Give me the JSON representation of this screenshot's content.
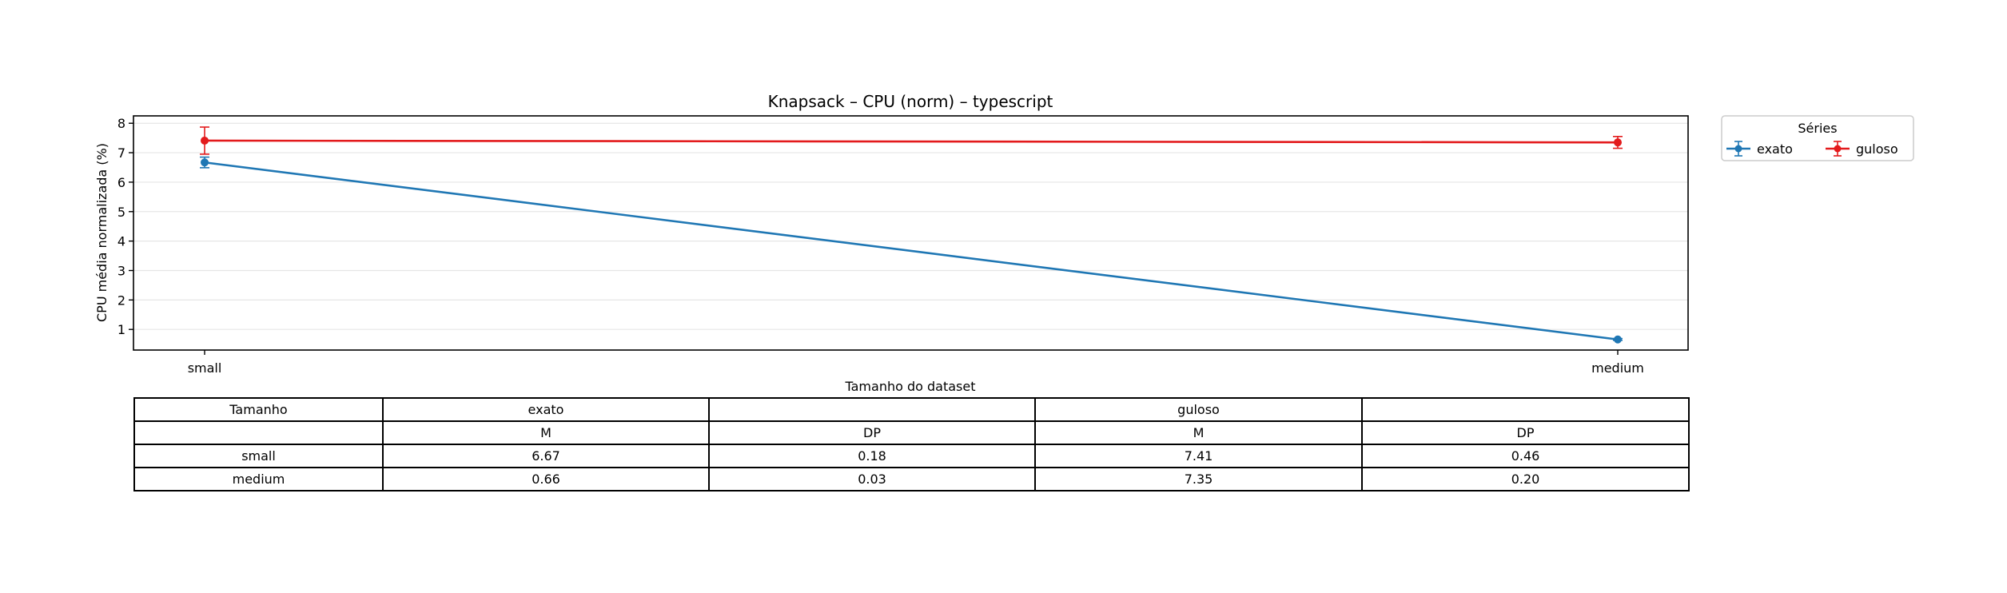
{
  "chart_data": {
    "type": "line",
    "title": "Knapsack – CPU (norm) – typescript",
    "xlabel": "Tamanho do dataset",
    "ylabel": "CPU média normalizada (%)",
    "categories": [
      "small",
      "medium"
    ],
    "ylim": [
      0.3,
      8.25
    ],
    "yticks": [
      "1",
      "2",
      "3",
      "4",
      "5",
      "6",
      "7",
      "8"
    ],
    "grid": "horizontal",
    "legend": {
      "title": "Séries",
      "placement": "outside-right"
    },
    "series": [
      {
        "name": "exato",
        "color": "#1f77b4",
        "values": [
          6.67,
          0.66
        ],
        "errors": [
          0.18,
          0.03
        ]
      },
      {
        "name": "guloso",
        "color": "#e31a1c",
        "values": [
          7.41,
          7.35
        ],
        "errors": [
          0.46,
          0.2
        ]
      }
    ]
  },
  "table": {
    "header1": [
      "Tamanho",
      "exato",
      "",
      "guloso",
      ""
    ],
    "header2": [
      "",
      "M",
      "DP",
      "M",
      "DP"
    ],
    "rows": [
      [
        "small",
        "6.67",
        "0.18",
        "7.41",
        "0.46"
      ],
      [
        "medium",
        "0.66",
        "0.03",
        "7.35",
        "0.20"
      ]
    ]
  }
}
